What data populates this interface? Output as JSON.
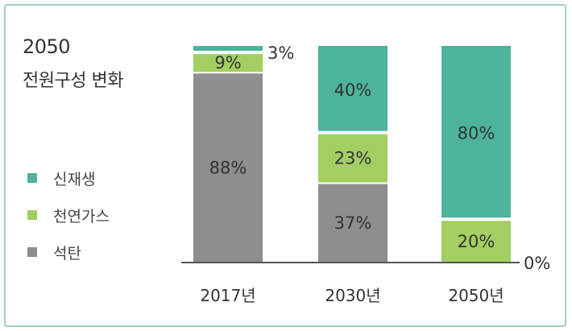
{
  "title": {
    "line1": "2050",
    "line2": "전원구성 변화"
  },
  "colors": {
    "renewable": "#4db39b",
    "gas": "#a3cf62",
    "coal": "#8d8e90",
    "border": "#9fd3b5"
  },
  "legend": [
    {
      "label": "신재생",
      "color": "#4db39b"
    },
    {
      "label": "천연가스",
      "color": "#a3cf62"
    },
    {
      "label": "석탄",
      "color": "#8d8e90"
    }
  ],
  "chart_data": {
    "type": "bar",
    "stacked": true,
    "categories": [
      "2017년",
      "2030년",
      "2050년"
    ],
    "series": [
      {
        "name": "석탄",
        "values": [
          88,
          37,
          0
        ]
      },
      {
        "name": "천연가스",
        "values": [
          9,
          23,
          20
        ]
      },
      {
        "name": "신재생",
        "values": [
          3,
          40,
          80
        ]
      }
    ],
    "data_labels": [
      [
        "88%",
        "37%",
        "0%"
      ],
      [
        "9%",
        "23%",
        "20%"
      ],
      [
        "3%",
        "40%",
        "80%"
      ]
    ],
    "ylim": [
      0,
      100
    ]
  }
}
